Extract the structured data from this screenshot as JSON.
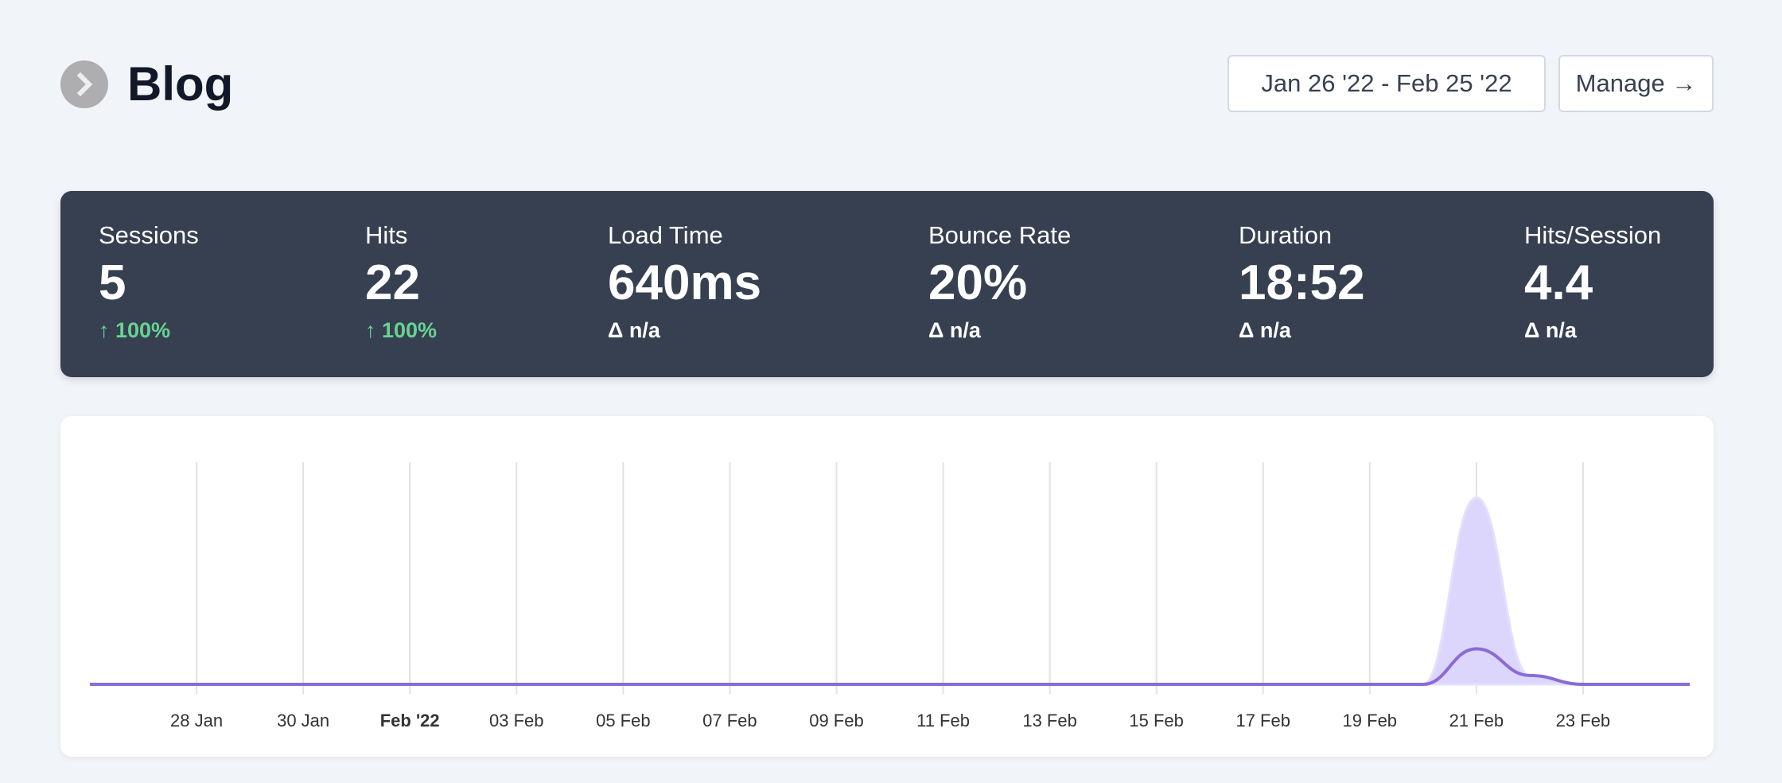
{
  "header": {
    "title": "Blog",
    "back_icon": "chevron-right-icon",
    "date_range": "Jan 26 '22 - Feb 25 '22",
    "manage_label": "Manage →"
  },
  "stats": [
    {
      "label": "Sessions",
      "value": "5",
      "delta": "↑ 100%",
      "trend": "up"
    },
    {
      "label": "Hits",
      "value": "22",
      "delta": "↑ 100%",
      "trend": "up"
    },
    {
      "label": "Load Time",
      "value": "640ms",
      "delta": "Δ n/a",
      "trend": "none"
    },
    {
      "label": "Bounce Rate",
      "value": "20%",
      "delta": "Δ n/a",
      "trend": "none"
    },
    {
      "label": "Duration",
      "value": "18:52",
      "delta": "Δ n/a",
      "trend": "none"
    },
    {
      "label": "Hits/Session",
      "value": "4.4",
      "delta": "Δ n/a",
      "trend": "none"
    }
  ],
  "colors": {
    "line": "#8b6bd6",
    "area": "#ddd6fc",
    "up": "#68d391",
    "panel": "#374051"
  },
  "chart_data": {
    "type": "area",
    "x": [
      "2022-01-26",
      "2022-01-27",
      "2022-01-28",
      "2022-01-29",
      "2022-01-30",
      "2022-01-31",
      "2022-02-01",
      "2022-02-02",
      "2022-02-03",
      "2022-02-04",
      "2022-02-05",
      "2022-02-06",
      "2022-02-07",
      "2022-02-08",
      "2022-02-09",
      "2022-02-10",
      "2022-02-11",
      "2022-02-12",
      "2022-02-13",
      "2022-02-14",
      "2022-02-15",
      "2022-02-16",
      "2022-02-17",
      "2022-02-18",
      "2022-02-19",
      "2022-02-20",
      "2022-02-21",
      "2022-02-22",
      "2022-02-23",
      "2022-02-24",
      "2022-02-25"
    ],
    "series": [
      {
        "kind": "area",
        "values": [
          0,
          0,
          0,
          0,
          0,
          0,
          0,
          0,
          0,
          0,
          0,
          0,
          0,
          0,
          0,
          0,
          0,
          0,
          0,
          0,
          0,
          0,
          0,
          0,
          0,
          0,
          21,
          1,
          0,
          0,
          0
        ]
      },
      {
        "kind": "line",
        "values": [
          0,
          0,
          0,
          0,
          0,
          0,
          0,
          0,
          0,
          0,
          0,
          0,
          0,
          0,
          0,
          0,
          0,
          0,
          0,
          0,
          0,
          0,
          0,
          0,
          0,
          0,
          4,
          1,
          0,
          0,
          0
        ]
      }
    ],
    "tick_labels": [
      {
        "at": "2022-01-28",
        "text": "28 Jan"
      },
      {
        "at": "2022-01-30",
        "text": "30 Jan"
      },
      {
        "at": "2022-02-01",
        "text": "Feb '22",
        "bold": true
      },
      {
        "at": "2022-02-03",
        "text": "03 Feb"
      },
      {
        "at": "2022-02-05",
        "text": "05 Feb"
      },
      {
        "at": "2022-02-07",
        "text": "07 Feb"
      },
      {
        "at": "2022-02-09",
        "text": "09 Feb"
      },
      {
        "at": "2022-02-11",
        "text": "11 Feb"
      },
      {
        "at": "2022-02-13",
        "text": "13 Feb"
      },
      {
        "at": "2022-02-15",
        "text": "15 Feb"
      },
      {
        "at": "2022-02-17",
        "text": "17 Feb"
      },
      {
        "at": "2022-02-19",
        "text": "19 Feb"
      },
      {
        "at": "2022-02-21",
        "text": "21 Feb"
      },
      {
        "at": "2022-02-23",
        "text": "23 Feb"
      }
    ],
    "ylim": [
      0,
      25
    ],
    "grid": "vertical",
    "legend": "none"
  }
}
